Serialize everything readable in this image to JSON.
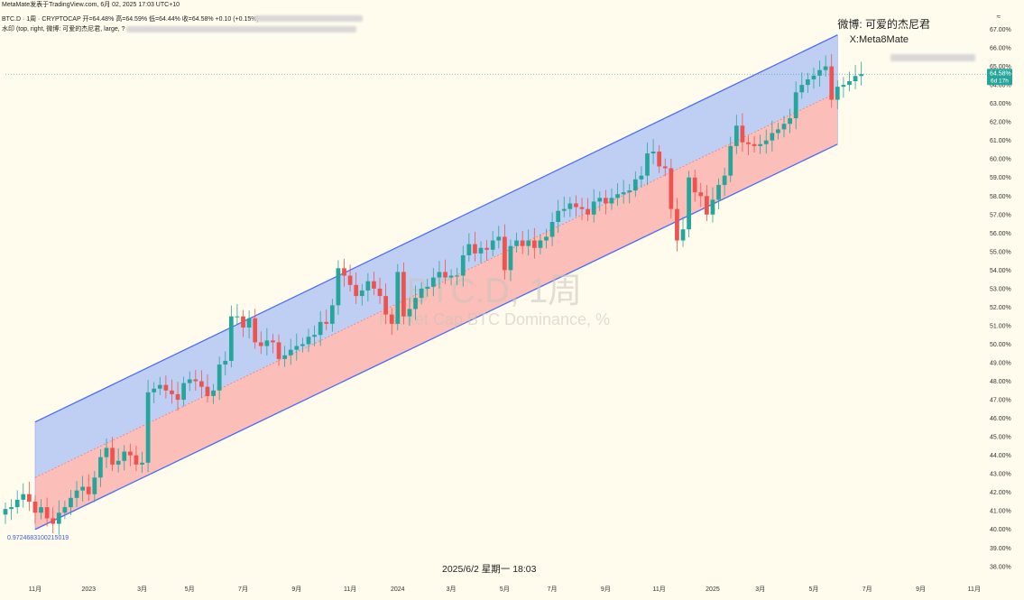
{
  "header": {
    "line0": "MetaMate发表于TradingView.com, 6月 02, 2025 17:03 UTC+10",
    "line1": "BTC.D · 1周 · CRYPTOCAP  开=64.48%  高=64.59%  低=64.44%  收=64.58%  +0.10 (+0.15%)",
    "line2": "水印 (top, right, 微博: 可爱的杰尼君, large, ?"
  },
  "watermark": {
    "weibo": "微博: 可爱的杰尼君",
    "x_handle": "X:Meta8Mate",
    "center_title": "BTC.D, 1周",
    "center_subtitle": "Market Cap BTC Dominance, %"
  },
  "crosshair_label": "2025/6/2 星期一 18:03",
  "anchor_label": "0.97246831002150​19",
  "colors": {
    "background": "#fffcee",
    "up": "#26a69a",
    "down": "#ef5350",
    "channel_line": "#4a6cf7",
    "upper_fill": "#a9c0f5",
    "lower_fill": "#f9aaa6",
    "price_tag": "#26a69a"
  },
  "chart_data": {
    "type": "candlestick",
    "symbol": "BTC.D",
    "interval": "1周",
    "ylim": [
      37.6,
      68.0
    ],
    "y_ticks": [
      38,
      39,
      40,
      41,
      42,
      43,
      44,
      45,
      46,
      47,
      48,
      49,
      50,
      51,
      52,
      53,
      54,
      55,
      56,
      57,
      58,
      59,
      60,
      61,
      62,
      63,
      64,
      65,
      66,
      67
    ],
    "y_tick_labels": [
      "38.00%",
      "39.00%",
      "40.00%",
      "41.00%",
      "42.00%",
      "43.00%",
      "44.00%",
      "45.00%",
      "46.00%",
      "47.00%",
      "48.00%",
      "49.00%",
      "50.00%",
      "51.00%",
      "52.00%",
      "53.00%",
      "54.00%",
      "55.00%",
      "56.00%",
      "57.00%",
      "58.00%",
      "59.00%",
      "60.00%",
      "61.00%",
      "62.00%",
      "63.00%",
      "64.00%",
      "65.00%",
      "66.00%",
      "67.00%"
    ],
    "x_ticks": [
      {
        "week": 5,
        "label": "11月"
      },
      {
        "week": 14,
        "label": "2023"
      },
      {
        "week": 23,
        "label": "3月"
      },
      {
        "week": 31,
        "label": "5月"
      },
      {
        "week": 40,
        "label": "7月"
      },
      {
        "week": 49,
        "label": "9月"
      },
      {
        "week": 58,
        "label": "11月"
      },
      {
        "week": 66,
        "label": "2024"
      },
      {
        "week": 75,
        "label": "3月"
      },
      {
        "week": 84,
        "label": "5月"
      },
      {
        "week": 92,
        "label": "7月"
      },
      {
        "week": 101,
        "label": "9月"
      },
      {
        "week": 110,
        "label": "11月"
      },
      {
        "week": 119,
        "label": "2025"
      },
      {
        "week": 127,
        "label": "3月"
      },
      {
        "week": 136,
        "label": "5月"
      },
      {
        "week": 145,
        "label": "7月"
      },
      {
        "week": 154,
        "label": "9月"
      },
      {
        "week": 163,
        "label": "11月"
      }
    ],
    "x_range_weeks": [
      0,
      165
    ],
    "last_price": 64.58,
    "last_price_label": "64.58%",
    "countdown_label": "6d 17h",
    "channel": {
      "start_week": 5,
      "end_week": 140,
      "upper_start": 45.8,
      "upper_end": 66.7,
      "lower_start": 40.0,
      "lower_end": 60.8,
      "mid_start": 42.8,
      "mid_end": 63.6
    },
    "candle_start_week": 0,
    "closes": [
      41.1,
      41.2,
      41.6,
      41.9,
      41.5,
      40.9,
      41.2,
      40.6,
      40.3,
      40.9,
      41.2,
      41.7,
      42.1,
      42.3,
      41.9,
      42.8,
      43.9,
      44.4,
      43.5,
      43.7,
      44.2,
      44.0,
      43.5,
      43.6,
      47.4,
      47.6,
      47.8,
      47.5,
      47.3,
      47.0,
      47.9,
      48.1,
      48.0,
      47.7,
      47.2,
      47.5,
      48.9,
      49.1,
      51.5,
      51.5,
      50.9,
      51.4,
      50.1,
      49.9,
      50.2,
      50.1,
      49.2,
      49.4,
      49.7,
      49.9,
      50.0,
      50.4,
      50.5,
      51.2,
      51.1,
      52.1,
      54.1,
      53.7,
      53.2,
      52.6,
      52.9,
      53.4,
      53.0,
      52.6,
      51.6,
      51.1,
      53.9,
      51.5,
      51.9,
      52.5,
      53.0,
      53.1,
      53.6,
      53.9,
      53.6,
      53.7,
      53.7,
      54.8,
      55.4,
      54.9,
      55.2,
      55.1,
      55.6,
      55.8,
      54.0,
      55.3,
      55.6,
      55.3,
      55.6,
      55.2,
      55.6,
      55.8,
      56.6,
      57.2,
      57.3,
      57.6,
      57.4,
      57.3,
      57.0,
      57.7,
      57.9,
      57.6,
      57.9,
      58.1,
      58.2,
      58.3,
      58.9,
      59.1,
      60.3,
      60.4,
      59.6,
      59.5,
      57.3,
      55.6,
      56.2,
      59.0,
      58.2,
      58.0,
      57.0,
      57.8,
      58.6,
      59.1,
      60.7,
      61.8,
      60.9,
      60.8,
      60.7,
      60.8,
      61.0,
      61.4,
      61.6,
      61.9,
      62.2,
      63.6,
      64.0,
      64.3,
      64.5,
      64.8,
      65.0,
      63.2,
      63.9,
      64.0,
      64.2,
      64.48,
      64.58
    ]
  }
}
